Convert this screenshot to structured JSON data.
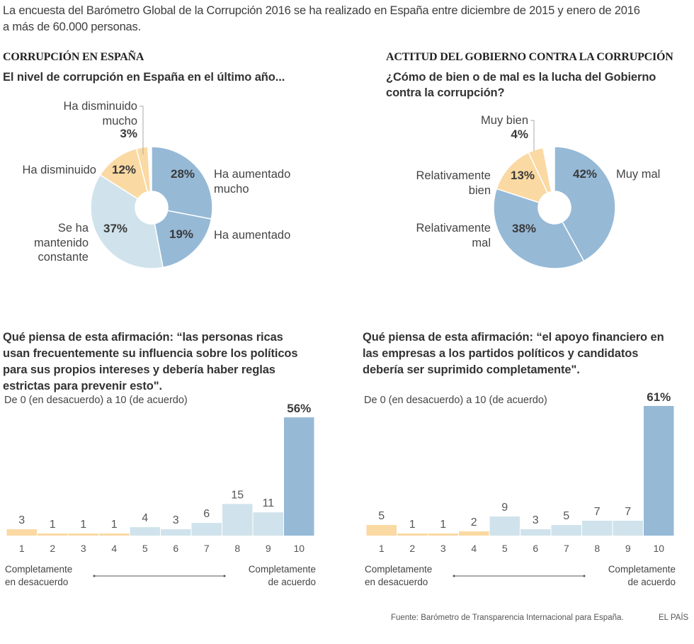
{
  "intro": {
    "line1": "La encuesta del Barómetro Global de la Corrupción 2016 se ha realizado en España entre diciembre de 2015 y enero de 2016",
    "line2": "a más de 60.000 personas."
  },
  "colors": {
    "orange": "#fad9a3",
    "blue": "#96b9d6",
    "light_blue": "#d0e3ec",
    "text_dark": "#3a3a3a"
  },
  "sections": {
    "left_title": "CORRUPCIÓN EN ESPAÑA",
    "right_title": "ACTITUD DEL GOBIERNO CONTRA LA CORRUPCIÓN"
  },
  "footer": {
    "source": "Fuente: Barómetro de Transparencia Internacional para España.",
    "brand": "EL PAÍS"
  },
  "chart_data": [
    {
      "type": "pie",
      "title": "El nivel de corrupción en España en el último año...",
      "donut": true,
      "slices": [
        {
          "label": "Ha aumentado mucho",
          "label_lines": [
            "Ha aumentado",
            "mucho"
          ],
          "value": 28,
          "pct": "28%",
          "color": "blue"
        },
        {
          "label": "Ha aumentado",
          "label_lines": [
            "Ha aumentado"
          ],
          "value": 19,
          "pct": "19%",
          "color": "blue"
        },
        {
          "label": "Se ha mantenido constante",
          "label_lines": [
            "Se ha",
            "mantenido",
            "constante"
          ],
          "value": 37,
          "pct": "37%",
          "color": "light_blue"
        },
        {
          "label": "Ha disminuido",
          "label_lines": [
            "Ha disminuido"
          ],
          "value": 12,
          "pct": "12%",
          "color": "orange"
        },
        {
          "label": "Ha disminuido mucho",
          "label_lines": [
            "Ha disminuido",
            "mucho"
          ],
          "value": 3,
          "pct": "3%",
          "color": "orange"
        }
      ],
      "total": 100
    },
    {
      "type": "pie",
      "title": "¿Cómo de bien o de mal es la lucha del Gobierno contra la corrupción?",
      "title_lines": [
        "¿Cómo de bien o de mal es la lucha del Gobierno",
        "contra la corrupción?"
      ],
      "donut": true,
      "slices": [
        {
          "label": "Muy mal",
          "label_lines": [
            "Muy mal"
          ],
          "value": 42,
          "pct": "42%",
          "color": "blue"
        },
        {
          "label": "Relativamente mal",
          "label_lines": [
            "Relativamente",
            "mal"
          ],
          "value": 38,
          "pct": "38%",
          "color": "blue"
        },
        {
          "label": "Relativamente bien",
          "label_lines": [
            "Relativamente",
            "bien"
          ],
          "value": 13,
          "pct": "13%",
          "color": "orange"
        },
        {
          "label": "Muy bien",
          "label_lines": [
            "Muy bien"
          ],
          "value": 4,
          "pct": "4%",
          "color": "orange"
        }
      ],
      "total": 100
    },
    {
      "type": "bar",
      "title": "Qué piensa de esta afirmación: “las personas ricas usan frecuentemente su influencia sobre los políticos para sus propios intereses y debería haber reglas estrictas para prevenir esto\".",
      "title_lines": [
        "Qué piensa de esta afirmación: “las personas ricas",
        "usan frecuentemente su influencia sobre los políticos",
        "para sus propios intereses y debería haber reglas",
        "estrictas para prevenir esto\"."
      ],
      "subtitle": "De 0 (en desacuerdo) a 10 (de acuerdo)",
      "categories": [
        "1",
        "2",
        "3",
        "4",
        "5",
        "6",
        "7",
        "8",
        "9",
        "10"
      ],
      "values": [
        3,
        1,
        1,
        1,
        4,
        3,
        6,
        15,
        11,
        56
      ],
      "value_labels": [
        "3",
        "1",
        "1",
        "1",
        "4",
        "3",
        "6",
        "15",
        "11",
        "56%"
      ],
      "colors": [
        "orange",
        "orange",
        "orange",
        "orange",
        "light_blue",
        "light_blue",
        "light_blue",
        "light_blue",
        "light_blue",
        "blue"
      ],
      "ylim": [
        0,
        61
      ],
      "left_end_label": [
        "Completamente",
        "en desacuerdo"
      ],
      "right_end_label": [
        "Completamente",
        "de acuerdo"
      ],
      "unit": "%"
    },
    {
      "type": "bar",
      "title": "Qué piensa de esta afirmación: “el apoyo financiero en las empresas a los partidos políticos y candidatos debería ser suprimido completamente\".",
      "title_lines": [
        "Qué piensa de esta afirmación: “el apoyo financiero en",
        "las empresas a los partidos políticos y candidatos",
        "debería ser suprimido completamente\"."
      ],
      "subtitle": "De 0 (en desacuerdo) a 10 (de acuerdo)",
      "categories": [
        "1",
        "2",
        "3",
        "4",
        "5",
        "6",
        "7",
        "8",
        "9",
        "10"
      ],
      "values": [
        5,
        1,
        1,
        2,
        9,
        3,
        5,
        7,
        7,
        61
      ],
      "value_labels": [
        "5",
        "1",
        "1",
        "2",
        "9",
        "3",
        "5",
        "7",
        "7",
        "61%"
      ],
      "colors": [
        "orange",
        "orange",
        "orange",
        "orange",
        "light_blue",
        "light_blue",
        "light_blue",
        "light_blue",
        "light_blue",
        "blue"
      ],
      "ylim": [
        0,
        61
      ],
      "left_end_label": [
        "Completamente",
        "en desacuerdo"
      ],
      "right_end_label": [
        "Completamente",
        "de acuerdo"
      ],
      "unit": "%"
    }
  ]
}
